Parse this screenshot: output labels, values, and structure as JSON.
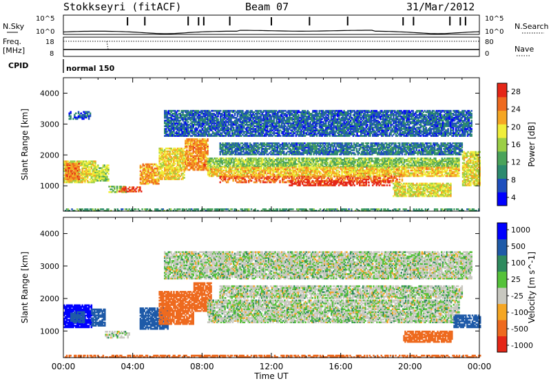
{
  "header": {
    "station": "Stokkseyri (fitACF)",
    "beam": "Beam 07",
    "date": "31/Mar/2012"
  },
  "noise_panel": {
    "left_label": "N.Sky",
    "right_label": "N.Search",
    "left_ticks": [
      "10^5",
      "10^0"
    ],
    "right_ticks": [
      "10^5",
      "10^0"
    ]
  },
  "freq_panel": {
    "left_label_line1": "Freq.",
    "left_label_line2": "[MHz]",
    "left_ticks": [
      "18",
      "8"
    ],
    "right_label": "Nave",
    "right_ticks": [
      "80",
      "0"
    ]
  },
  "cpid_panel": {
    "label": "CPID",
    "mode": "normal 150"
  },
  "power_panel": {
    "ylabel": "Slant Range [km]",
    "yticks": [
      "4000",
      "3000",
      "2000",
      "1000"
    ],
    "colorbar_label": "Power [dB]",
    "colorbar_ticks": [
      "28",
      "24",
      "20",
      "16",
      "12",
      "8",
      "4"
    ],
    "colors": [
      "#0000ff",
      "#1e4fbd",
      "#2c8a6e",
      "#4aa35a",
      "#9bcf46",
      "#f0ee3a",
      "#f5a623",
      "#ee6a1f",
      "#e52617"
    ]
  },
  "velocity_panel": {
    "ylabel": "Slant Range [km]",
    "yticks": [
      "4000",
      "3000",
      "2000",
      "1000"
    ],
    "colorbar_label": "Velocity [m s^-1]",
    "colorbar_ticks": [
      "1000",
      "500",
      "100",
      "25",
      "-25",
      "-100",
      "-500",
      "-1000"
    ],
    "colors": [
      "#0000ff",
      "#1e5aa8",
      "#2e8a5e",
      "#55c23a",
      "#c8c8c0",
      "#f5a623",
      "#ee6a1f",
      "#e52617"
    ]
  },
  "x_axis": {
    "label": "Time UT",
    "ticks": [
      "00:00",
      "04:00",
      "08:00",
      "12:00",
      "16:00",
      "20:00",
      "00:00"
    ]
  },
  "chart_data": [
    {
      "type": "line",
      "title": "N.Sky / N.Search",
      "x_range_hours": [
        0,
        24
      ],
      "y_scale": "log",
      "y_range": [
        1,
        100000
      ],
      "baseline_description_free": true,
      "spikes_hours": [
        3.7,
        4.7,
        7.2,
        7.8,
        8.1,
        9.6,
        12.0,
        14.2,
        16.4,
        19.6,
        20.2,
        22.3,
        22.9,
        23.2
      ]
    },
    {
      "type": "line",
      "title": "Freq / Nave",
      "x_range_hours": [
        0,
        24
      ],
      "y_range": [
        8,
        18
      ],
      "freq_MHz": 10.5,
      "nave_range": [
        0,
        80
      ]
    },
    {
      "type": "heatmap",
      "quantity": "Power",
      "unit": "dB",
      "x_range_hours": [
        0,
        24
      ],
      "y_range_km": [
        180,
        4500
      ],
      "color_range": [
        0,
        30
      ],
      "bands": [
        {
          "t0": 0.0,
          "t1": 1.8,
          "r0": 1100,
          "r1": 1800,
          "value": 18
        },
        {
          "t0": 0.1,
          "t1": 0.9,
          "r0": 1200,
          "r1": 1700,
          "value": 24
        },
        {
          "t0": 1.8,
          "t1": 2.6,
          "r0": 1150,
          "r1": 1650,
          "value": 16
        },
        {
          "t0": 2.6,
          "t1": 3.6,
          "r0": 780,
          "r1": 1000,
          "value": 14
        },
        {
          "t0": 3.1,
          "t1": 4.5,
          "r0": 800,
          "r1": 950,
          "value": 27
        },
        {
          "t0": 4.4,
          "t1": 5.5,
          "r0": 1050,
          "r1": 1700,
          "value": 22
        },
        {
          "t0": 5.5,
          "t1": 7.0,
          "r0": 1200,
          "r1": 2200,
          "value": 19
        },
        {
          "t0": 7.0,
          "t1": 8.3,
          "r0": 1500,
          "r1": 2500,
          "value": 23
        },
        {
          "t0": 8.3,
          "t1": 22.8,
          "r0": 1600,
          "r1": 1900,
          "value": 14
        },
        {
          "t0": 8.3,
          "t1": 22.8,
          "r0": 1300,
          "r1": 1600,
          "value": 20
        },
        {
          "t0": 9.0,
          "t1": 19.5,
          "r0": 1100,
          "r1": 1300,
          "value": 25
        },
        {
          "t0": 13.0,
          "t1": 18.8,
          "r0": 1000,
          "r1": 1150,
          "value": 29
        },
        {
          "t0": 19.0,
          "t1": 22.3,
          "r0": 650,
          "r1": 1100,
          "value": 18
        },
        {
          "t0": 23.0,
          "t1": 24.0,
          "r0": 1000,
          "r1": 2100,
          "value": 18
        },
        {
          "t0": 0.3,
          "t1": 1.5,
          "r0": 3150,
          "r1": 3400,
          "value": 5
        },
        {
          "t0": 5.8,
          "t1": 23.5,
          "r0": 2600,
          "r1": 3450,
          "value": 6
        },
        {
          "t0": 9.0,
          "t1": 23.0,
          "r0": 2000,
          "r1": 2400,
          "value": 7
        },
        {
          "t0": 0.0,
          "t1": 24.0,
          "r0": 180,
          "r1": 260,
          "value": 10
        }
      ]
    },
    {
      "type": "heatmap",
      "quantity": "Velocity",
      "unit": "m s^-1",
      "x_range_hours": [
        0,
        24
      ],
      "y_range_km": [
        180,
        4500
      ],
      "color_bins": [
        1000,
        500,
        100,
        25,
        -25,
        -100,
        -500,
        -1000
      ],
      "bands": [
        {
          "t0": 0.0,
          "t1": 1.6,
          "r0": 1100,
          "r1": 1800,
          "value": 600
        },
        {
          "t0": 0.4,
          "t1": 1.2,
          "r0": 1250,
          "r1": 1600,
          "value": 150
        },
        {
          "t0": 1.6,
          "t1": 2.4,
          "r0": 1150,
          "r1": 1650,
          "value": 200
        },
        {
          "t0": 2.4,
          "t1": 3.8,
          "r0": 780,
          "r1": 1000,
          "value": 0
        },
        {
          "t0": 4.4,
          "t1": 6.0,
          "r0": 1050,
          "r1": 1700,
          "value": 300
        },
        {
          "t0": 5.5,
          "t1": 7.5,
          "r0": 1200,
          "r1": 2200,
          "value": -150
        },
        {
          "t0": 7.5,
          "t1": 8.5,
          "r0": 1600,
          "r1": 2500,
          "value": -200
        },
        {
          "t0": 8.3,
          "t1": 22.8,
          "r0": 1250,
          "r1": 1950,
          "value": 0
        },
        {
          "t0": 19.6,
          "t1": 22.4,
          "r0": 650,
          "r1": 1000,
          "value": -300
        },
        {
          "t0": 22.5,
          "t1": 24.0,
          "r0": 1100,
          "r1": 1500,
          "value": 200
        },
        {
          "t0": 5.8,
          "t1": 23.5,
          "r0": 2600,
          "r1": 3450,
          "value": 0
        },
        {
          "t0": 9.0,
          "t1": 23.0,
          "r0": 2000,
          "r1": 2400,
          "value": 0
        },
        {
          "t0": 0.0,
          "t1": 24.0,
          "r0": 180,
          "r1": 260,
          "value": -150
        }
      ]
    }
  ]
}
